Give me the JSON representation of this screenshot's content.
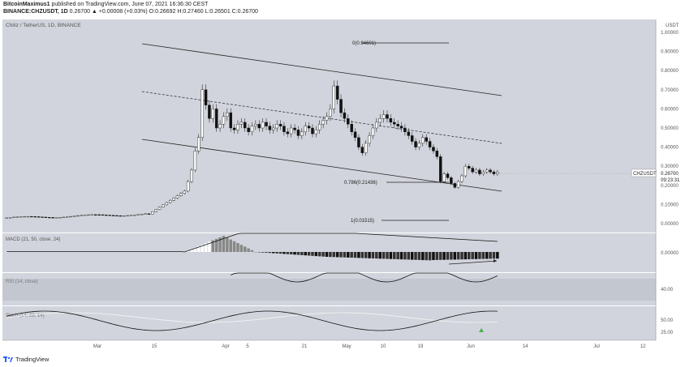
{
  "header": {
    "author": "BitcoinMaximus1",
    "published_text": " published on TradingView.com, June 07, 2021 16:36:30 CEST",
    "symbol_line": "BINANCE:CHZUSDT, 1D",
    "ohlc_text": " 0.26700 ▲ +0.00008 (+0.03%) O:0.26692 H:0.27460 L:0.26501 C:0.26700"
  },
  "chart_title": "Chiliz / TetherUS, 1D, BINANCE",
  "price_axis": {
    "unit_label": "USDT",
    "ticks": [
      "1.00000",
      "0.90000",
      "0.80000",
      "0.70000",
      "0.60000",
      "0.50000",
      "0.40000",
      "0.30000",
      "0.20000",
      "0.10000",
      "0.00000"
    ],
    "current_symbol": "CHZUSDT",
    "current_price": "0.26700",
    "countdown": "09:23:31"
  },
  "fib_labels": {
    "level_0": "0(0.94601)",
    "level_0786": "0.786(0.21436)",
    "level_1": "1(0.01515)"
  },
  "macd": {
    "label": "MACD (21, 50, close, 24)",
    "axis_tick": "0.00000"
  },
  "rsi": {
    "label": "RSI (14, close)",
    "axis_tick": "40.00"
  },
  "stoch": {
    "label": "Stoch (14, 28, 14)",
    "axis_ticks": [
      "50.00",
      "25.00"
    ]
  },
  "time_axis": [
    "Mar",
    "15",
    "Apr",
    "5",
    "21",
    "May",
    "10",
    "19",
    "Jun",
    "14",
    "Jul",
    "12"
  ],
  "footer": {
    "logo_text": "TradingView"
  },
  "colors": {
    "pane_bg": "#d1d4dc",
    "candle_up": "#ffffff",
    "candle_down": "#000000",
    "accent_green": "#26a69a",
    "stoch_signal": "#4caf50"
  }
}
